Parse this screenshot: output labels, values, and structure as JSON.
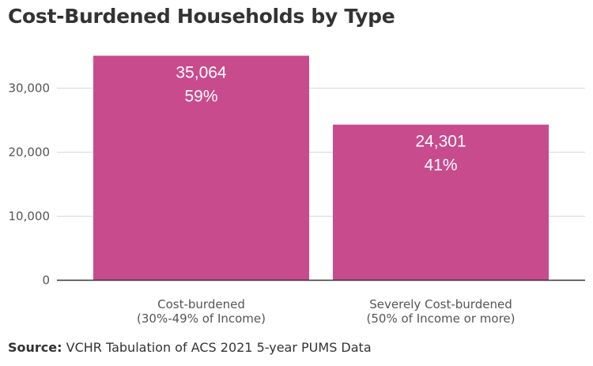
{
  "chart_data": {
    "type": "bar",
    "title": "Cost-Burdened Households by Type",
    "categories": [
      [
        "Cost-burdened",
        "(30%-49% of Income)"
      ],
      [
        "Severely Cost-burdened",
        "(50% of Income or more)"
      ]
    ],
    "values": [
      35064,
      24301
    ],
    "value_labels": [
      "35,064",
      "24,301"
    ],
    "percent_labels": [
      "59%",
      "41%"
    ],
    "yticks": [
      0,
      10000,
      20000,
      30000
    ],
    "ytick_labels": [
      "0",
      "10,000",
      "20,000",
      "30,000"
    ],
    "ylim": [
      0,
      40000
    ],
    "xlabel": "",
    "ylabel": "",
    "grid": true,
    "bar_color": "#c84b8e",
    "grid_color": "#d9d9d9",
    "axis_color": "#333333"
  },
  "source": {
    "label": "Source:",
    "text": " VCHR Tabulation of ACS 2021 5-year PUMS Data"
  }
}
